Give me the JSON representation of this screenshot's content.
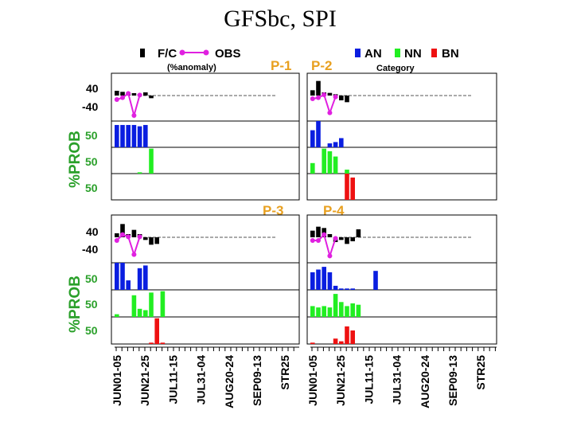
{
  "title": "GFSbc, SPI",
  "legend": {
    "fc_label": "F/C",
    "obs_label": "OBS",
    "obs_sub": "(%anomaly)",
    "an_label": "AN",
    "nn_label": "NN",
    "bn_label": "BN",
    "cat_sub": "Category"
  },
  "y_axis_label": "%PROB",
  "anomaly_ticks": [
    "40",
    "-40"
  ],
  "prob_tick": "50",
  "x_ticks": [
    "JUN01-05",
    "JUN21-25",
    "JUL11-15",
    "JUL31-04",
    "AUG20-24",
    "SEP09-13",
    "STR25"
  ],
  "colors": {
    "fc": "#000000",
    "obs": "#e020e0",
    "an": "#0a1ee0",
    "nn": "#22ee22",
    "bn": "#ee1111",
    "plabel": "#e8a020",
    "axis_label": "#2aa02a"
  },
  "chart_data": [
    {
      "type": "bar",
      "panel": "P-1",
      "title": "P-1",
      "ylim_anomaly": [
        -60,
        60
      ],
      "ylim_prob": [
        0,
        100
      ],
      "fc": [
        18,
        14,
        12,
        9,
        6,
        12,
        -10
      ],
      "obs": [
        -15,
        -8,
        8,
        -75,
        2
      ],
      "an": [
        85,
        85,
        85,
        85,
        80,
        85
      ],
      "nn": [
        0,
        0,
        0,
        0,
        5,
        0,
        95
      ],
      "bn": [
        0,
        0,
        0,
        0,
        0,
        0,
        0
      ]
    },
    {
      "type": "bar",
      "panel": "P-2",
      "title": "P-2",
      "ylim_anomaly": [
        -60,
        60
      ],
      "ylim_prob": [
        0,
        100
      ],
      "fc": [
        20,
        55,
        12,
        10,
        5,
        -18,
        -25
      ],
      "obs": [
        -12,
        -8,
        3,
        -65,
        -5
      ],
      "an": [
        65,
        100,
        0,
        15,
        20,
        35
      ],
      "nn": [
        40,
        0,
        95,
        85,
        65,
        0,
        15
      ],
      "bn": [
        0,
        0,
        0,
        0,
        0,
        0,
        100,
        85
      ]
    },
    {
      "type": "bar",
      "panel": "P-3",
      "title": "P-3",
      "ylim_anomaly": [
        -60,
        60
      ],
      "ylim_prob": [
        0,
        100
      ],
      "fc": [
        15,
        50,
        12,
        28,
        12,
        -10,
        -28,
        -25
      ],
      "obs": [
        -12,
        10,
        2,
        -65,
        2
      ],
      "an": [
        100,
        100,
        35,
        0,
        80,
        90
      ],
      "nn": [
        10,
        0,
        0,
        80,
        30,
        25,
        90,
        0,
        95
      ],
      "bn": [
        0,
        0,
        0,
        0,
        0,
        0,
        5,
        95,
        5
      ]
    },
    {
      "type": "bar",
      "panel": "P-4",
      "title": "P-4",
      "ylim_anomaly": [
        -60,
        60
      ],
      "ylim_prob": [
        0,
        100
      ],
      "fc": [
        25,
        40,
        35,
        12,
        -18,
        -10,
        -25,
        -15,
        30
      ],
      "obs": [
        -12,
        -12,
        10,
        -70,
        -4
      ],
      "an": [
        65,
        75,
        85,
        65,
        15,
        5,
        5,
        5,
        0,
        0,
        0,
        70
      ],
      "nn": [
        40,
        35,
        40,
        35,
        85,
        55,
        40,
        50,
        45
      ],
      "bn": [
        5,
        0,
        0,
        0,
        20,
        10,
        65,
        50,
        0
      ]
    }
  ]
}
